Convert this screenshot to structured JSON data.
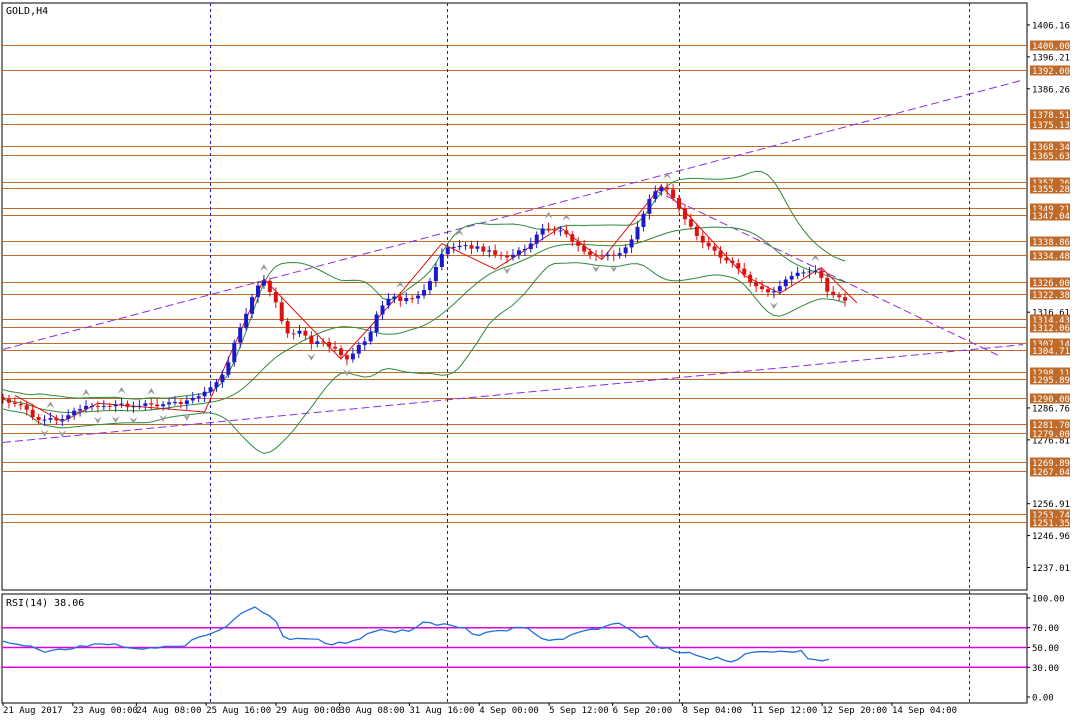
{
  "chart_data": [
    {
      "type": "candlestick",
      "symbol_label": "GOLD,H4",
      "ylim": [
        1230,
        1413
      ],
      "price_axis_ticks": [
        "1406.16",
        "1396.21",
        "1386.26",
        "1316.61",
        "1286.76",
        "1276.81",
        "1256.91",
        "1246.96",
        "1237.01"
      ],
      "level_lines": [
        {
          "value": 1400.0,
          "label": "1400.00"
        },
        {
          "value": 1392.0,
          "label": "1392.00"
        },
        {
          "value": 1378.51,
          "label": "1378.51"
        },
        {
          "value": 1375.13,
          "label": "1375.13"
        },
        {
          "value": 1368.34,
          "label": "1368.34"
        },
        {
          "value": 1365.63,
          "label": "1365.63"
        },
        {
          "value": 1357.26,
          "label": "1357.26"
        },
        {
          "value": 1355.28,
          "label": "1355.28"
        },
        {
          "value": 1349.21,
          "label": "1349.21"
        },
        {
          "value": 1347.04,
          "label": "1347.04"
        },
        {
          "value": 1338.86,
          "label": "1338.86"
        },
        {
          "value": 1334.48,
          "label": "1334.48"
        },
        {
          "value": 1326.0,
          "label": "1326.00"
        },
        {
          "value": 1322.38,
          "label": "1322.38"
        },
        {
          "value": 1314.43,
          "label": "1314.43"
        },
        {
          "value": 1312.06,
          "label": "1312.06"
        },
        {
          "value": 1307.14,
          "label": "1307.14"
        },
        {
          "value": 1304.71,
          "label": "1304.71"
        },
        {
          "value": 1298.11,
          "label": "1298.11"
        },
        {
          "value": 1295.89,
          "label": "1295.89"
        },
        {
          "value": 1290.0,
          "label": "1290.00"
        },
        {
          "value": 1281.7,
          "label": "1281.70"
        },
        {
          "value": 1279.0,
          "label": "1279.00"
        },
        {
          "value": 1269.89,
          "label": "1269.89"
        },
        {
          "value": 1267.04,
          "label": "1267.04"
        },
        {
          "value": 1253.74,
          "label": "1253.74"
        },
        {
          "value": 1251.35,
          "label": "1251.35"
        }
      ],
      "closes": [
        1289.5,
        1288.4,
        1288.0,
        1287.6,
        1286.2,
        1283.9,
        1283.0,
        1283.1,
        1283.6,
        1282.9,
        1283.3,
        1284.5,
        1285.9,
        1286.4,
        1287.4,
        1287.4,
        1287.1,
        1287.4,
        1287.3,
        1287.8,
        1288.1,
        1287.0,
        1287.3,
        1287.4,
        1288.2,
        1287.8,
        1287.3,
        1287.9,
        1288.5,
        1288.6,
        1288.0,
        1289.1,
        1289.9,
        1290.4,
        1291.8,
        1293.2,
        1294.8,
        1297.1,
        1301.0,
        1307.1,
        1311.8,
        1316.1,
        1321.3,
        1324.9,
        1326.4,
        1322.9,
        1319.7,
        1313.8,
        1310.0,
        1309.9,
        1310.8,
        1309.3,
        1306.7,
        1307.5,
        1307.3,
        1305.8,
        1305.3,
        1303.2,
        1301.9,
        1303.7,
        1306.4,
        1307.5,
        1310.4,
        1315.9,
        1318.7,
        1320.8,
        1321.5,
        1320.1,
        1321.0,
        1320.9,
        1321.8,
        1323.5,
        1326.3,
        1330.7,
        1334.7,
        1336.8,
        1336.9,
        1337.3,
        1337.5,
        1336.4,
        1337.1,
        1335.5,
        1335.9,
        1334.5,
        1334.3,
        1333.7,
        1334.5,
        1335.9,
        1336.3,
        1338.0,
        1340.8,
        1342.7,
        1342.4,
        1342.1,
        1342.1,
        1340.9,
        1338.6,
        1337.3,
        1335.5,
        1334.5,
        1334.3,
        1334.1,
        1334.5,
        1334.3,
        1335.0,
        1336.8,
        1339.3,
        1343.2,
        1347.3,
        1351.9,
        1354.3,
        1355.5,
        1354.9,
        1352.2,
        1349.0,
        1345.6,
        1343.3,
        1340.4,
        1338.3,
        1337.1,
        1335.8,
        1333.6,
        1332.7,
        1331.9,
        1330.2,
        1328.3,
        1326.0,
        1324.7,
        1323.8,
        1322.8,
        1323.1,
        1324.7,
        1326.8,
        1327.9,
        1328.9,
        1329.0,
        1329.3,
        1329.5,
        1327.3,
        1323.0,
        1321.9,
        1321.3,
        1320.2
      ],
      "indicator": {
        "label": "RSI(14) 38.06",
        "ylim": [
          0,
          100
        ],
        "ticks": [
          "100.00",
          "70.00",
          "50.00",
          "30.00",
          "0.00"
        ],
        "levels": [
          70,
          50,
          30
        ],
        "values": [
          56.5,
          54.2,
          53.3,
          51.7,
          51.3,
          48.1,
          45.3,
          47.1,
          48.4,
          47.8,
          48.9,
          51.7,
          51.0,
          53.5,
          53.6,
          52.8,
          53.6,
          50.9,
          49.7,
          48.9,
          48.3,
          49.7,
          49.4,
          51.1,
          51.1,
          51.1,
          51.5,
          57.8,
          60.6,
          62.2,
          64.9,
          67.9,
          71.6,
          78.5,
          84.3,
          87.8,
          90.9,
          85.9,
          82.2,
          76.4,
          61.4,
          58.1,
          59.2,
          58.9,
          58.6,
          58.5,
          54.3,
          52.6,
          55.4,
          54.2,
          57.0,
          58.6,
          63.8,
          66.1,
          68.1,
          66.8,
          65.3,
          67.8,
          66.4,
          70.2,
          75.6,
          75.2,
          72.4,
          73.9,
          72.5,
          70.3,
          70.1,
          63.8,
          62.2,
          65.3,
          66.6,
          67.2,
          66.8,
          70.3,
          70.3,
          69.3,
          63.5,
          59.1,
          57.2,
          58.3,
          58.2,
          62.3,
          64.8,
          66.9,
          68.4,
          68.4,
          71.3,
          73.7,
          74.5,
          70.4,
          66.3,
          60.0,
          61.8,
          52.9,
          49.1,
          49.6,
          45.7,
          44.6,
          45.2,
          42.1,
          40.1,
          37.8,
          40.3,
          37.2,
          35.5,
          37.9,
          43.4,
          45.1,
          45.8,
          45.8,
          45.4,
          46.4,
          45.8,
          45.3,
          47.0,
          38.6,
          37.8,
          36.5,
          38.1
        ],
        "value_units": "RSI"
      },
      "time_axis_labels": [
        "21 Aug 2017",
        "23 Aug 00:00",
        "24 Aug 08:00",
        "25 Aug 16:00",
        "29 Aug 00:00",
        "30 Aug 08:00",
        "31 Aug 16:00",
        "4 Sep 00:00",
        "5 Sep 12:00",
        "6 Sep 20:00",
        "8 Sep 04:00",
        "11 Sep 12:00",
        "12 Sep 20:00",
        "14 Sep 04:00"
      ],
      "colors": {
        "up_candle": "#1a1acc",
        "down_candle": "#e01010",
        "level_line": "#c06a2a",
        "level_tag_bg": "#c06a2a",
        "level_tag_text": "#ffffff",
        "band_line": "#2e8b3a",
        "trend_line": "#8a2be2",
        "separator": "#1a1acc",
        "rsi_line": "#1e6fe0",
        "rsi_level": "#e000e0",
        "fractal": "#9a9a9a",
        "axis": "#000000"
      }
    }
  ]
}
